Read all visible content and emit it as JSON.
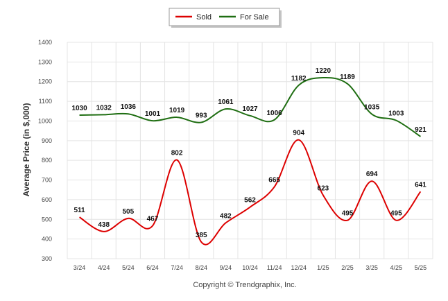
{
  "chart_data": {
    "type": "line",
    "categories": [
      "3/24",
      "4/24",
      "5/24",
      "6/24",
      "7/24",
      "8/24",
      "9/24",
      "10/24",
      "11/24",
      "12/24",
      "1/25",
      "2/25",
      "3/25",
      "4/25",
      "5/25"
    ],
    "series": [
      {
        "name": "Sold",
        "color": "#dd0000",
        "values": [
          511,
          438,
          505,
          467,
          802,
          385,
          482,
          562,
          665,
          904,
          623,
          495,
          694,
          495,
          641
        ]
      },
      {
        "name": "For Sale",
        "color": "#1f6e12",
        "values": [
          1030,
          1032,
          1036,
          1001,
          1019,
          993,
          1061,
          1027,
          1006,
          1182,
          1220,
          1189,
          1035,
          1003,
          921
        ]
      }
    ],
    "ylabel": "Average Price (in $,000)",
    "ylim": [
      300,
      1400
    ],
    "yticks": [
      300,
      400,
      500,
      600,
      700,
      800,
      900,
      1000,
      1100,
      1200,
      1300,
      1400
    ],
    "grid": true,
    "legend_position": "top-center",
    "credit": "Copyright © Trendgraphix, Inc."
  }
}
